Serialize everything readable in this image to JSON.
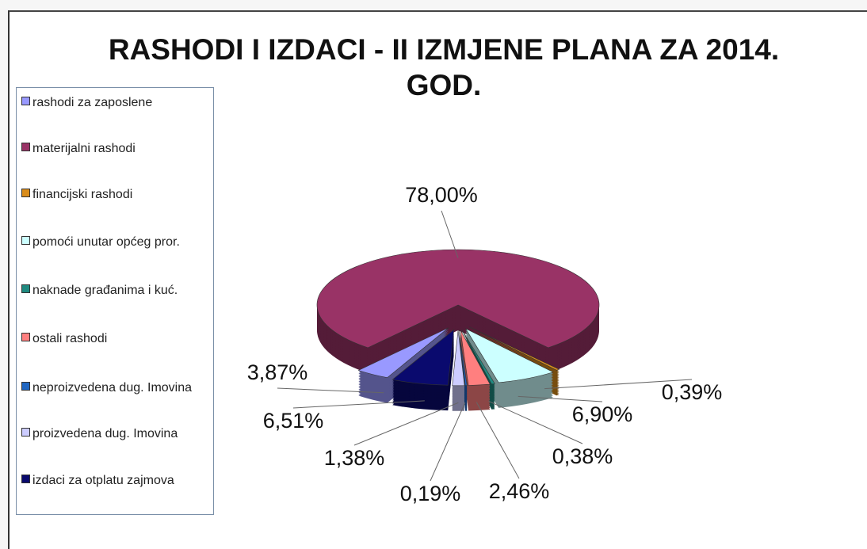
{
  "chart_data": {
    "type": "pie",
    "title": "RASHODI I IZDACI - II IZMJENE PLANA ZA 2014. GOD.",
    "categories": [
      "rashodi za zaposlene",
      "materijalni rashodi",
      "financijski rashodi",
      "pomoći unutar općeg pror.",
      "naknade građanima i kuć.",
      "ostali rashodi",
      "neproizvedena dug. Imovina",
      "proizvedena dug. Imovina",
      "izdaci za otplatu zajmova"
    ],
    "values": [
      3.87,
      78,
      0.39,
      6.9,
      0.38,
      2.46,
      0.19,
      1.38,
      6.51
    ],
    "value_labels": [
      "3,87%",
      "78,00%",
      "0,39%",
      "6,90%",
      "0,38%",
      "2,46%",
      "0,19%",
      "1,38%",
      "6,51%"
    ],
    "colors": [
      "#9999ff",
      "#993366",
      "#d98c1a",
      "#ccffff",
      "#1f8a80",
      "#ff7f7f",
      "#1f66c2",
      "#ccccff",
      "#0a0a6e"
    ],
    "legend": "left"
  }
}
